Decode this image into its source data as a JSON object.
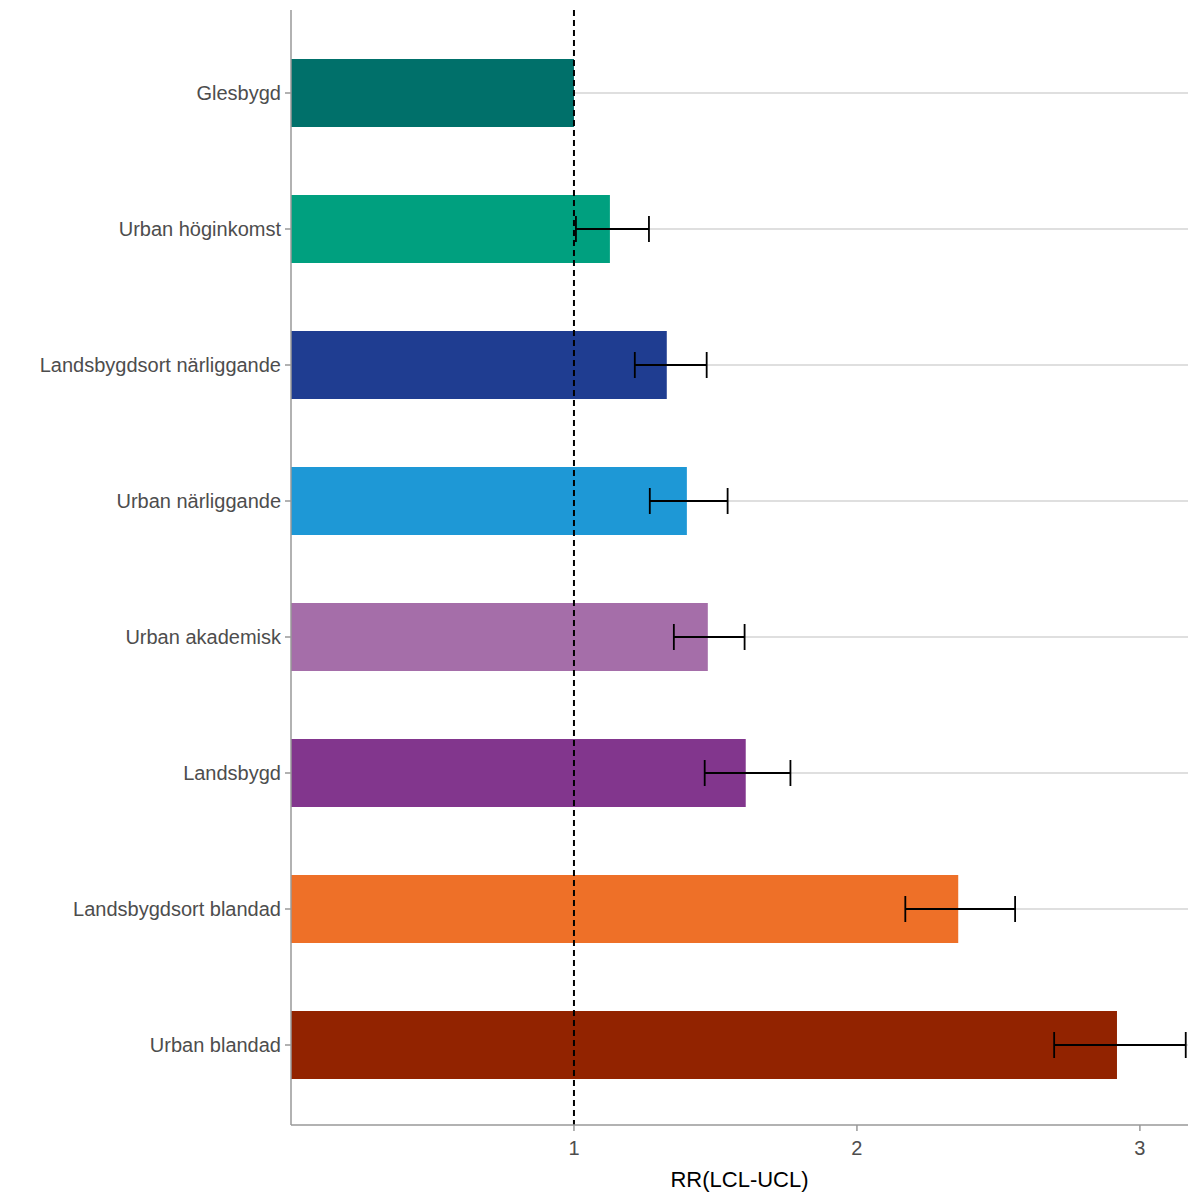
{
  "chart_data": {
    "type": "bar",
    "orientation": "horizontal",
    "categories": [
      "Glesbygd",
      "Urban höginkomst",
      "Landsbygdsort närliggande",
      "Urban närliggande",
      "Urban akademisk",
      "Landsbygd",
      "Landsbygdsort blandad",
      "Urban blandad"
    ],
    "values": [
      1.0,
      1.127,
      1.328,
      1.399,
      1.473,
      1.607,
      2.358,
      2.919
    ],
    "error_lower": [
      null,
      1.007,
      1.215,
      1.268,
      1.353,
      1.462,
      2.171,
      2.697
    ],
    "error_upper": [
      null,
      1.265,
      1.469,
      1.543,
      1.603,
      1.765,
      2.559,
      3.162
    ],
    "colors": [
      "#00706a",
      "#00a07f",
      "#1f3d91",
      "#1e98d6",
      "#a56ea9",
      "#82368d",
      "#ee7028",
      "#922300"
    ],
    "x_label": "RR(LCL-UCL)",
    "xlim": [
      0,
      3.17
    ],
    "xticks": [
      1,
      2,
      3
    ],
    "reference_line": 1,
    "grid": true
  }
}
